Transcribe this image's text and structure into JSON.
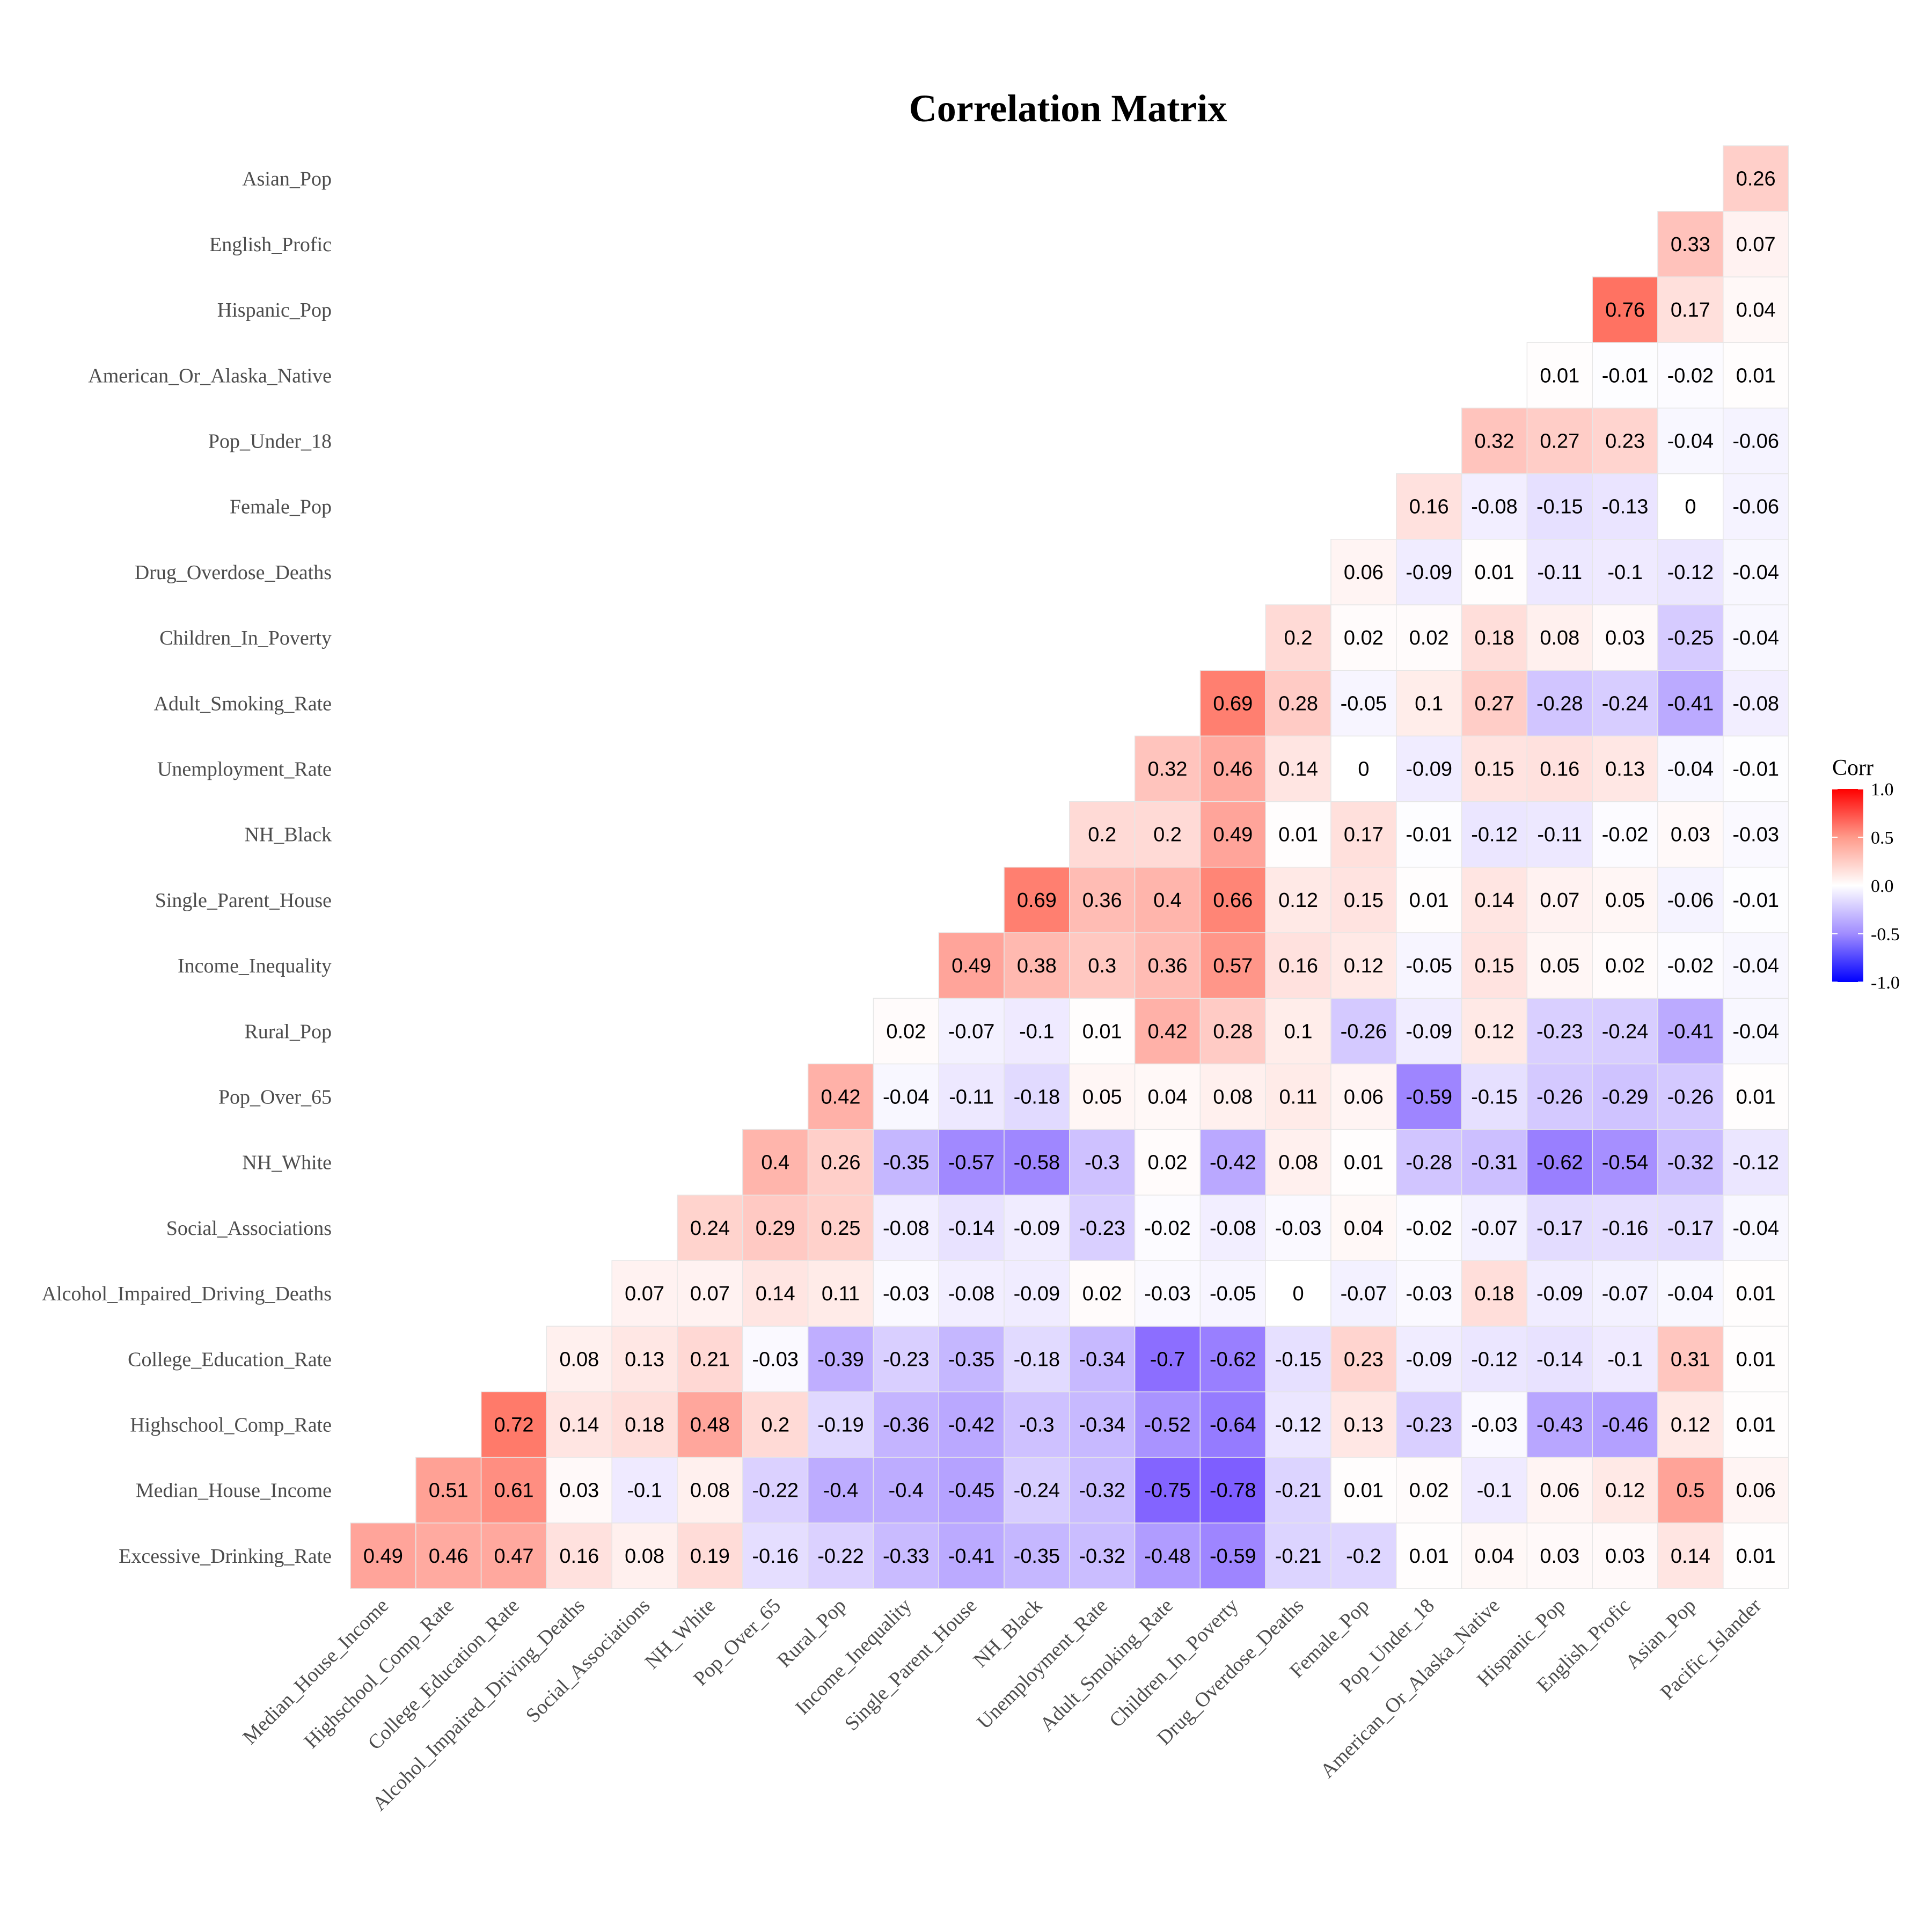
{
  "chart_data": {
    "type": "heatmap",
    "title": "Correlation Matrix",
    "x_labels": [
      "Median_House_Income",
      "Highschool_Comp_Rate",
      "College_Education_Rate",
      "Alcohol_Impaired_Driving_Deaths",
      "Social_Associations",
      "NH_White",
      "Pop_Over_65",
      "Rural_Pop",
      "Income_Inequality",
      "Single_Parent_House",
      "NH_Black",
      "Unemployment_Rate",
      "Adult_Smoking_Rate",
      "Children_In_Poverty",
      "Drug_Overdose_Deaths",
      "Female_Pop",
      "Pop_Under_18",
      "American_Or_Alaska_Native",
      "Hispanic_Pop",
      "English_Profic",
      "Asian_Pop",
      "Pacific_Islander"
    ],
    "y_labels": [
      "Excessive_Drinking_Rate",
      "Median_House_Income",
      "Highschool_Comp_Rate",
      "College_Education_Rate",
      "Alcohol_Impaired_Driving_Deaths",
      "Social_Associations",
      "NH_White",
      "Pop_Over_65",
      "Rural_Pop",
      "Income_Inequality",
      "Single_Parent_House",
      "NH_Black",
      "Unemployment_Rate",
      "Adult_Smoking_Rate",
      "Children_In_Poverty",
      "Drug_Overdose_Deaths",
      "Female_Pop",
      "Pop_Under_18",
      "American_Or_Alaska_Native",
      "Hispanic_Pop",
      "English_Profic",
      "Asian_Pop"
    ],
    "rows": [
      [
        0.49,
        0.46,
        0.47,
        0.16,
        0.08,
        0.19,
        -0.16,
        -0.22,
        -0.33,
        -0.41,
        -0.35,
        -0.32,
        -0.48,
        -0.59,
        -0.21,
        -0.2,
        0.01,
        0.04,
        0.03,
        0.03,
        0.14,
        0.01
      ],
      [
        0.51,
        0.61,
        0.03,
        -0.1,
        0.08,
        -0.22,
        -0.4,
        -0.4,
        -0.45,
        -0.24,
        -0.32,
        -0.75,
        -0.78,
        -0.21,
        0.01,
        0.02,
        -0.1,
        0.06,
        0.12,
        0.5,
        0.06
      ],
      [
        0.72,
        0.14,
        0.18,
        0.48,
        0.2,
        -0.19,
        -0.36,
        -0.42,
        -0.3,
        -0.34,
        -0.52,
        -0.64,
        -0.12,
        0.13,
        -0.23,
        -0.03,
        -0.43,
        -0.46,
        0.12,
        0.01
      ],
      [
        0.08,
        0.13,
        0.21,
        -0.03,
        -0.39,
        -0.23,
        -0.35,
        -0.18,
        -0.34,
        -0.7,
        -0.62,
        -0.15,
        0.23,
        -0.09,
        -0.12,
        -0.14,
        -0.1,
        0.31,
        0.01
      ],
      [
        0.07,
        0.07,
        0.14,
        0.11,
        -0.03,
        -0.08,
        -0.09,
        0.02,
        -0.03,
        -0.05,
        0,
        -0.07,
        -0.03,
        0.18,
        -0.09,
        -0.07,
        -0.04,
        0.01
      ],
      [
        0.24,
        0.29,
        0.25,
        -0.08,
        -0.14,
        -0.09,
        -0.23,
        -0.02,
        -0.08,
        -0.03,
        0.04,
        -0.02,
        -0.07,
        -0.17,
        -0.16,
        -0.17,
        -0.04
      ],
      [
        0.4,
        0.26,
        -0.35,
        -0.57,
        -0.58,
        -0.3,
        0.02,
        -0.42,
        0.08,
        0.01,
        -0.28,
        -0.31,
        -0.62,
        -0.54,
        -0.32,
        -0.12
      ],
      [
        0.42,
        -0.04,
        -0.11,
        -0.18,
        0.05,
        0.04,
        0.08,
        0.11,
        0.06,
        -0.59,
        -0.15,
        -0.26,
        -0.29,
        -0.26,
        0.01
      ],
      [
        0.02,
        -0.07,
        -0.1,
        0.01,
        0.42,
        0.28,
        0.1,
        -0.26,
        -0.09,
        0.12,
        -0.23,
        -0.24,
        -0.41,
        -0.04
      ],
      [
        0.49,
        0.38,
        0.3,
        0.36,
        0.57,
        0.16,
        0.12,
        -0.05,
        0.15,
        0.05,
        0.02,
        -0.02,
        -0.04
      ],
      [
        0.69,
        0.36,
        0.4,
        0.66,
        0.12,
        0.15,
        0.01,
        0.14,
        0.07,
        0.05,
        -0.06,
        -0.01
      ],
      [
        0.2,
        0.2,
        0.49,
        0.01,
        0.17,
        -0.01,
        -0.12,
        -0.11,
        -0.02,
        0.03,
        -0.03
      ],
      [
        0.32,
        0.46,
        0.14,
        0,
        -0.09,
        0.15,
        0.16,
        0.13,
        -0.04,
        -0.01
      ],
      [
        0.69,
        0.28,
        -0.05,
        0.1,
        0.27,
        -0.28,
        -0.24,
        -0.41,
        -0.08
      ],
      [
        0.2,
        0.02,
        0.02,
        0.18,
        0.08,
        0.03,
        -0.25,
        -0.04
      ],
      [
        0.06,
        -0.09,
        0.01,
        -0.11,
        -0.1,
        -0.12,
        -0.04
      ],
      [
        0.16,
        -0.08,
        -0.15,
        -0.13,
        0,
        -0.06
      ],
      [
        0.32,
        0.27,
        0.23,
        -0.04,
        -0.06
      ],
      [
        0.01,
        -0.01,
        -0.02,
        0.01
      ],
      [
        0.76,
        0.17,
        0.04
      ],
      [
        0.33,
        0.07
      ],
      [
        0.26
      ]
    ],
    "color_scale": {
      "low": "#0000ff",
      "mid": "#ffffff",
      "high": "#ff0000",
      "limits": [
        -1,
        1
      ]
    },
    "legend": {
      "title": "Corr",
      "ticks": [
        {
          "value": 1.0,
          "label": "1.0"
        },
        {
          "value": 0.5,
          "label": "0.5"
        },
        {
          "value": 0.0,
          "label": "0.0"
        },
        {
          "value": -0.5,
          "label": "-0.5"
        },
        {
          "value": -1.0,
          "label": "-1.0"
        }
      ],
      "position": "right"
    }
  }
}
